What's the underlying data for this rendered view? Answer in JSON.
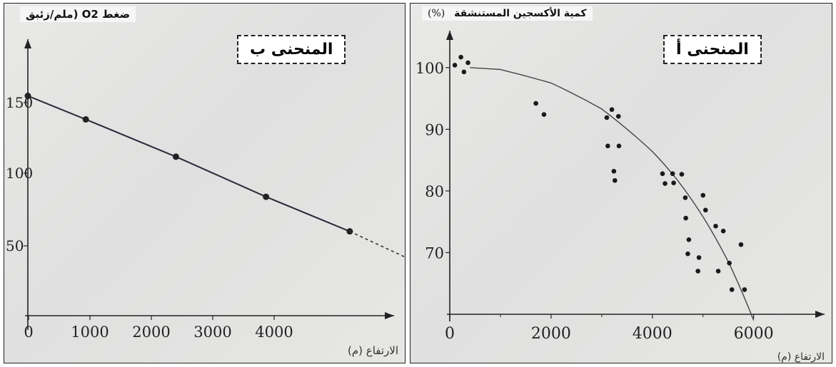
{
  "chart_data": [
    {
      "type": "line",
      "title": "المنحنى ب",
      "ylabel": "ضغط O2 (ملم/زئبق",
      "xlabel": "(م) الارتفاع",
      "xlim": [
        0,
        5600
      ],
      "ylim": [
        0,
        200
      ],
      "xticks": [
        "0",
        "1000",
        "2000",
        "3000",
        "4000"
      ],
      "yticks": [
        "50",
        "100",
        "150"
      ],
      "series": [
        {
          "x": [
            0,
            900,
            2300,
            3700,
            5000
          ],
          "y": [
            159,
            142,
            115,
            86,
            61
          ]
        }
      ],
      "extrapolation": {
        "x": [
          5000,
          6200
        ],
        "y": [
          61,
          35
        ]
      },
      "grid": false
    },
    {
      "type": "scatter",
      "title": "المنحنى أ",
      "ylabel": "كمية الأكسجين المستنشقة",
      "yunit": "(%)",
      "xlabel": "(م) الارتفاع",
      "xlim": [
        0,
        7400
      ],
      "ylim": [
        60,
        106
      ],
      "xticks": [
        "0",
        "2000",
        "4000",
        "6000"
      ],
      "yticks": [
        "70",
        "80",
        "90",
        "100"
      ],
      "series": [
        {
          "x": [
            100,
            220,
            280,
            360,
            1700,
            1860,
            3100,
            3200,
            3330,
            3120,
            3340,
            3240,
            3260,
            4200,
            4250,
            4400,
            4420,
            4580,
            4650,
            4660,
            4720,
            4700,
            4900,
            4920,
            5000,
            5050,
            5250,
            5300,
            5400,
            5520,
            5750,
            5570,
            5820
          ],
          "y": [
            100.4,
            101.7,
            99.3,
            100.8,
            94.2,
            92.4,
            91.9,
            93.2,
            92.1,
            87.3,
            87.3,
            83.2,
            81.7,
            82.8,
            81.2,
            82.8,
            81.3,
            82.7,
            78.9,
            75.6,
            72.1,
            69.8,
            67.0,
            69.2,
            79.3,
            76.9,
            74.3,
            67.0,
            73.5,
            68.3,
            71.3,
            64.0,
            64.0
          ]
        }
      ],
      "trend": {
        "x": [
          400,
          1000,
          2000,
          3000,
          4000,
          4500,
          5000,
          5500,
          6000
        ],
        "y": [
          100.0,
          99.7,
          97.5,
          93.3,
          86.4,
          81.7,
          75.8,
          68.5,
          59.0
        ]
      },
      "grid": false
    }
  ]
}
